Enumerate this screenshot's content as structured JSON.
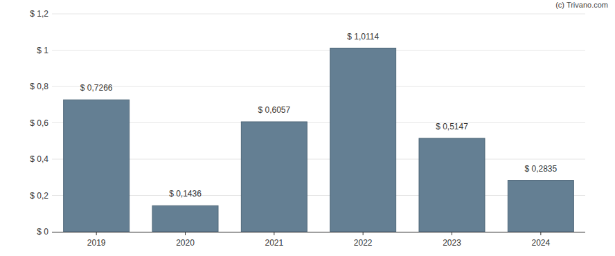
{
  "chart_data": {
    "type": "bar",
    "annotations": [
      "(c) Trivano.com"
    ],
    "categories": [
      "2019",
      "2020",
      "2021",
      "2022",
      "2023",
      "2024"
    ],
    "values": [
      0.7266,
      0.1436,
      0.6057,
      1.0114,
      0.5147,
      0.2835
    ],
    "value_labels": [
      "$ 0,7266",
      "$ 0,1436",
      "$ 0,6057",
      "$ 1,0114",
      "$ 0,5147",
      "$ 0,2835"
    ],
    "color": "#647f93",
    "ylim": [
      0,
      1.2
    ],
    "yticks": [
      {
        "value": 0,
        "label": "$ 0"
      },
      {
        "value": 0.2,
        "label": "$ 0,2"
      },
      {
        "value": 0.4,
        "label": "$ 0,4"
      },
      {
        "value": 0.6,
        "label": "$ 0,6"
      },
      {
        "value": 0.8,
        "label": "$ 0,8"
      },
      {
        "value": 1,
        "label": "$ 1"
      },
      {
        "value": 1.2,
        "label": "$ 1,2"
      }
    ],
    "grid": true,
    "data_labels": true
  }
}
